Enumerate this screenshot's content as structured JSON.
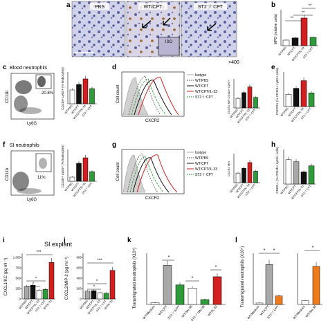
{
  "panels": {
    "a": {
      "micrograph_labels": [
        "PBS",
        "WT/CPT",
        "ST2⁻/⁻CPT"
      ],
      "inset": "ISO",
      "magnification": "×400"
    },
    "b": {
      "letter": "b",
      "ylabel": "MPO (relative units)",
      "sig": [
        "**",
        "**",
        "**"
      ]
    },
    "c": {
      "letter": "c",
      "title": "Blood neutrophils",
      "gate_pct": "20.8%",
      "ylabel_flow": "CD11b",
      "xlabel_flow": "Ly6G",
      "ylabel_bar": "CD11b+ Ly6G+ (% leukocytes)"
    },
    "d": {
      "letter": "d",
      "xlabel": "CXCR2",
      "ylabel": "Cell count",
      "inset_ylabel": "CXCR2 MFI CD11b+ Ly6G+",
      "legend": [
        "Isotype",
        "WT/PBS",
        "WT/CPT",
        "WT/CPT/IL-33",
        "ST2⁻/⁻CPT"
      ]
    },
    "e": {
      "letter": "e",
      "ylabel": "CXCR2+ (% CD11b+ Ly6G+ cells)"
    },
    "f": {
      "letter": "f",
      "title": "SI neutrophils",
      "gate_pct": "11%",
      "ylabel_flow": "CD11b",
      "xlabel_flow": "Ly6G",
      "ylabel_bar": "CD11b+ Ly6G+ (% leukocytes)"
    },
    "g": {
      "letter": "g",
      "xlabel": "CXCR2",
      "ylabel": "Cell count",
      "inset_ylabel": "CXCR2 MFI",
      "legend": [
        "Isotype",
        "WT/PBS",
        "WT/CPT",
        "WT/CPT/IL-33",
        "ST2⁻/⁻CPT"
      ]
    },
    "h": {
      "letter": "h",
      "ylabel": "CD62L+ (% CD11b+ Ly6G+ cells)"
    },
    "i": {
      "letter": "i",
      "ylabel": "CXCL1/KC (pg ml⁻¹)",
      "yticks": [
        "0",
        "250",
        "500",
        "750",
        "1,000"
      ],
      "sig": [
        "***",
        "*",
        "*"
      ]
    },
    "j": {
      "letter": "j",
      "ylabel": "CXCL2/MIP-2 (pg ml⁻¹)",
      "yticks": [
        "0",
        "200",
        "400",
        "600",
        "800"
      ],
      "sig": [
        "***",
        "*",
        "*"
      ]
    },
    "k": {
      "letter": "k",
      "ylabel": "Transmigrated neutrophils (X10⁴)",
      "sig": [
        "*",
        "*",
        "*"
      ]
    },
    "l": {
      "letter": "l",
      "ylabel": "Transmigrated neutrophils (X10⁴)",
      "sig": [
        "*",
        "*",
        "*"
      ]
    },
    "letter_a": "a"
  },
  "shared": {
    "group_labels": [
      "WT/PBS",
      "WT/CPT",
      "WT/CPT/IL-33",
      "ST2⁻/⁻CPT"
    ],
    "si_explant": "SI explant",
    "explant_groups": [
      "WT/PBS",
      "WT/CPT",
      "WT/CPT/IL-33",
      "ST2⁻/⁻CPT",
      "WT/IL-33"
    ],
    "k_groups": [
      "WT/Medium",
      "WT/CPT",
      "ST2⁻/⁻/CPT",
      "WT/SN-38",
      "ST2⁻/⁻/SN-38",
      "WT/IL-33"
    ],
    "l_groups_left": [
      "WT/Medium",
      "WT/CPT",
      "ST2⁻/⁻CPT"
    ],
    "l_groups_right": [
      "WT/Medium",
      "WT/SN-38"
    ]
  },
  "colors": {
    "white": "#ffffff",
    "gray": "#a8a8a8",
    "black": "#111111",
    "red": "#d21f1f",
    "green": "#2f9a3a",
    "orange": "#f07b1a"
  },
  "chart_data": [
    {
      "panel": "b",
      "type": "bar",
      "categories": [
        "WT/PBS",
        "WT/CPT",
        "WT/CPT/IL-33",
        "ST2-/-CPT"
      ],
      "values": [
        1,
        1.4,
        5,
        1.5
      ]
    },
    {
      "panel": "c",
      "type": "bar",
      "categories": [
        "WT/PBS",
        "WT/CPT",
        "WT/CPT/IL-33",
        "ST2-/-CPT"
      ],
      "values": [
        10,
        14,
        18,
        11
      ]
    },
    {
      "panel": "d",
      "type": "bar",
      "categories": [
        "WT/PBS",
        "WT/CPT",
        "WT/CPT/IL-33",
        "ST2-/-CPT"
      ],
      "values": [
        1,
        1.6,
        2.2,
        1.1
      ]
    },
    {
      "panel": "e",
      "type": "bar",
      "categories": [
        "WT/PBS",
        "WT/CPT",
        "WT/CPT/IL-33",
        "ST2-/-CPT"
      ],
      "values": [
        8,
        12,
        17,
        9
      ]
    },
    {
      "panel": "f",
      "type": "bar",
      "categories": [
        "WT/PBS",
        "WT/CPT",
        "WT/CPT/IL-33",
        "ST2-/-CPT"
      ],
      "values": [
        3,
        13,
        17,
        7
      ]
    },
    {
      "panel": "g",
      "type": "bar",
      "categories": [
        "WT/PBS",
        "WT/CPT",
        "WT/CPT/IL-33",
        "ST2-/-CPT"
      ],
      "values": [
        1,
        1.5,
        2.1,
        1.2
      ]
    },
    {
      "panel": "h",
      "type": "bar",
      "categories": [
        "WT/PBS",
        "WT/CPT",
        "WT/CPT/IL-33",
        "ST2-/-CPT"
      ],
      "values": [
        60,
        55,
        30,
        45
      ]
    },
    {
      "panel": "i",
      "type": "bar",
      "ylim": [
        0,
        1000
      ],
      "categories": [
        "WT/PBS",
        "WT/CPT",
        "WT/CPT/IL-33",
        "ST2-/-CPT",
        "WT/IL-33"
      ],
      "values": [
        300,
        330,
        210,
        230,
        880
      ]
    },
    {
      "panel": "j",
      "type": "bar",
      "ylim": [
        0,
        800
      ],
      "categories": [
        "WT/PBS",
        "WT/CPT",
        "WT/CPT/IL-33",
        "ST2-/-CPT",
        "WT/IL-33"
      ],
      "values": [
        150,
        160,
        120,
        110,
        550
      ]
    },
    {
      "panel": "k",
      "type": "bar",
      "categories": [
        "WT/Medium",
        "WT/CPT",
        "ST2-/-/CPT",
        "WT/SN-38",
        "ST2-/-/SN-38",
        "WT/IL-33"
      ],
      "values": [
        0.5,
        12,
        6,
        5,
        1.5,
        8.5
      ]
    },
    {
      "panel": "l-left",
      "type": "bar",
      "categories": [
        "WT/Medium",
        "WT/CPT",
        "ST2-/-CPT"
      ],
      "values": [
        0.5,
        14,
        3
      ]
    },
    {
      "panel": "l-right",
      "type": "bar",
      "categories": [
        "WT/Medium",
        "WT/SN-38"
      ],
      "values": [
        0.5,
        5
      ]
    }
  ]
}
